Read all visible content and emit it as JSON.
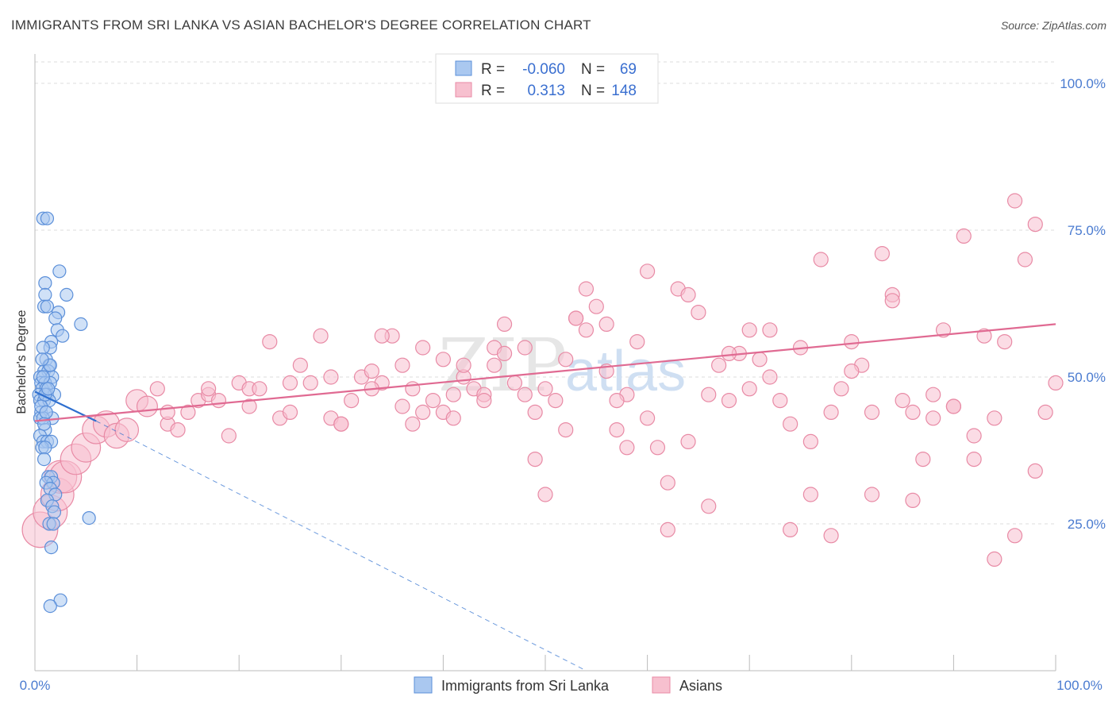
{
  "title": "IMMIGRANTS FROM SRI LANKA VS ASIAN BACHELOR'S DEGREE CORRELATION CHART",
  "source": "Source: ZipAtlas.com",
  "watermark": {
    "zip": "ZIP",
    "atlas": "atlas"
  },
  "colors": {
    "blue_fill": "#aac8f0",
    "blue_stroke": "#5b8fd9",
    "blue_line": "#2e6fcf",
    "pink_fill": "#f7c0cf",
    "pink_stroke": "#e88aa5",
    "pink_line": "#e06a92",
    "tick_text": "#4a7bd0",
    "grid": "#dddddd"
  },
  "legend": {
    "rows": [
      {
        "r_label": "R =",
        "r_value": "-0.060",
        "n_label": "N =",
        "n_value": "69"
      },
      {
        "r_label": "R =",
        "r_value": "0.313",
        "n_label": "N =",
        "n_value": "148"
      }
    ]
  },
  "chart_data": {
    "type": "scatter",
    "xlabel": "",
    "ylabel": "Bachelor's Degree",
    "xlim": [
      0,
      100
    ],
    "ylim": [
      0,
      105
    ],
    "x_tick_labels": [
      "0.0%",
      "100.0%"
    ],
    "y_ticks": [
      {
        "value": 25,
        "label": "25.0%"
      },
      {
        "value": 50,
        "label": "50.0%"
      },
      {
        "value": 75,
        "label": "75.0%"
      },
      {
        "value": 100,
        "label": "100.0%"
      }
    ],
    "grid": "horizontal dashed",
    "legend_position": "top-center and bottom-center",
    "series": [
      {
        "name": "Immigrants from Sri Lanka",
        "color": "#5b8fd9",
        "trend": {
          "x": [
            0,
            6
          ],
          "y": [
            47.5,
            42.5
          ],
          "dashed_extension": {
            "x": [
              6,
              54
            ],
            "y": [
              42.5,
              0
            ]
          }
        },
        "points": [
          [
            0.8,
            77
          ],
          [
            1.2,
            77
          ],
          [
            1.0,
            66
          ],
          [
            1.0,
            64
          ],
          [
            2.4,
            68
          ],
          [
            3.1,
            64
          ],
          [
            0.9,
            62
          ],
          [
            1.2,
            62
          ],
          [
            2.3,
            61
          ],
          [
            2.0,
            60
          ],
          [
            2.2,
            58
          ],
          [
            4.5,
            59
          ],
          [
            2.7,
            57
          ],
          [
            1.6,
            56
          ],
          [
            1.5,
            55
          ],
          [
            0.8,
            55
          ],
          [
            1.1,
            53
          ],
          [
            1.4,
            52
          ],
          [
            0.9,
            51
          ],
          [
            1.3,
            51
          ],
          [
            1.7,
            50
          ],
          [
            0.5,
            50
          ],
          [
            0.6,
            49
          ],
          [
            1.0,
            49
          ],
          [
            1.5,
            49
          ],
          [
            0.7,
            48
          ],
          [
            1.1,
            48
          ],
          [
            0.4,
            47
          ],
          [
            1.2,
            47
          ],
          [
            1.9,
            47
          ],
          [
            0.5,
            46
          ],
          [
            0.9,
            46
          ],
          [
            1.4,
            46
          ],
          [
            0.6,
            44
          ],
          [
            1.1,
            44
          ],
          [
            1.7,
            43
          ],
          [
            0.5,
            43
          ],
          [
            0.8,
            43
          ],
          [
            1.0,
            41
          ],
          [
            0.5,
            40
          ],
          [
            0.8,
            39
          ],
          [
            1.2,
            39
          ],
          [
            1.6,
            39
          ],
          [
            0.7,
            38
          ],
          [
            1.0,
            38
          ],
          [
            0.9,
            36
          ],
          [
            1.3,
            33
          ],
          [
            1.6,
            33
          ],
          [
            1.8,
            32
          ],
          [
            1.1,
            32
          ],
          [
            1.5,
            31
          ],
          [
            2.0,
            30
          ],
          [
            1.2,
            29
          ],
          [
            1.7,
            28
          ],
          [
            1.9,
            27
          ],
          [
            5.3,
            26
          ],
          [
            1.4,
            25
          ],
          [
            1.8,
            25
          ],
          [
            1.6,
            21
          ],
          [
            2.5,
            12
          ],
          [
            1.5,
            11
          ],
          [
            0.6,
            45
          ],
          [
            1.0,
            47
          ],
          [
            1.3,
            48
          ],
          [
            0.8,
            50
          ],
          [
            1.5,
            52
          ],
          [
            0.7,
            53
          ],
          [
            1.1,
            44
          ],
          [
            0.9,
            42
          ]
        ]
      },
      {
        "name": "Asians",
        "color": "#e88aa5",
        "trend": {
          "x": [
            0,
            100
          ],
          "y": [
            42.5,
            59
          ]
        },
        "points": [
          [
            0.5,
            24
          ],
          [
            1.5,
            27
          ],
          [
            2.2,
            30
          ],
          [
            2.5,
            33
          ],
          [
            3.0,
            33
          ],
          [
            4.0,
            36
          ],
          [
            5.0,
            38
          ],
          [
            6.0,
            41
          ],
          [
            7.0,
            42
          ],
          [
            8.0,
            40
          ],
          [
            9.0,
            41
          ],
          [
            10,
            46
          ],
          [
            11,
            45
          ],
          [
            12,
            48
          ],
          [
            13,
            42
          ],
          [
            14,
            41
          ],
          [
            15,
            44
          ],
          [
            16,
            46
          ],
          [
            17,
            47
          ],
          [
            18,
            46
          ],
          [
            19,
            40
          ],
          [
            20,
            49
          ],
          [
            21,
            48
          ],
          [
            22,
            48
          ],
          [
            23,
            56
          ],
          [
            24,
            43
          ],
          [
            25,
            49
          ],
          [
            26,
            52
          ],
          [
            27,
            49
          ],
          [
            28,
            57
          ],
          [
            29,
            43
          ],
          [
            30,
            42
          ],
          [
            31,
            46
          ],
          [
            32,
            50
          ],
          [
            33,
            51
          ],
          [
            34,
            49
          ],
          [
            35,
            57
          ],
          [
            36,
            52
          ],
          [
            37,
            48
          ],
          [
            38,
            55
          ],
          [
            39,
            46
          ],
          [
            40,
            44
          ],
          [
            41,
            43
          ],
          [
            42,
            50
          ],
          [
            43,
            48
          ],
          [
            44,
            47
          ],
          [
            45,
            55
          ],
          [
            46,
            54
          ],
          [
            47,
            49
          ],
          [
            48,
            47
          ],
          [
            49,
            36
          ],
          [
            50,
            30
          ],
          [
            51,
            46
          ],
          [
            52,
            53
          ],
          [
            53,
            60
          ],
          [
            54,
            58
          ],
          [
            55,
            62
          ],
          [
            56,
            51
          ],
          [
            57,
            41
          ],
          [
            58,
            47
          ],
          [
            59,
            56
          ],
          [
            60,
            43
          ],
          [
            61,
            38
          ],
          [
            62,
            32
          ],
          [
            63,
            65
          ],
          [
            64,
            64
          ],
          [
            65,
            61
          ],
          [
            66,
            47
          ],
          [
            67,
            52
          ],
          [
            68,
            46
          ],
          [
            69,
            54
          ],
          [
            70,
            58
          ],
          [
            71,
            53
          ],
          [
            72,
            50
          ],
          [
            73,
            46
          ],
          [
            74,
            42
          ],
          [
            75,
            55
          ],
          [
            76,
            30
          ],
          [
            77,
            70
          ],
          [
            78,
            44
          ],
          [
            79,
            48
          ],
          [
            80,
            56
          ],
          [
            81,
            52
          ],
          [
            82,
            44
          ],
          [
            83,
            71
          ],
          [
            84,
            64
          ],
          [
            85,
            46
          ],
          [
            86,
            44
          ],
          [
            87,
            36
          ],
          [
            88,
            43
          ],
          [
            89,
            58
          ],
          [
            90,
            45
          ],
          [
            91,
            74
          ],
          [
            92,
            40
          ],
          [
            93,
            57
          ],
          [
            94,
            43
          ],
          [
            95,
            56
          ],
          [
            96,
            80
          ],
          [
            97,
            70
          ],
          [
            98,
            76
          ],
          [
            99,
            44
          ],
          [
            100,
            49
          ],
          [
            30,
            42
          ],
          [
            34,
            57
          ],
          [
            38,
            44
          ],
          [
            42,
            52
          ],
          [
            46,
            59
          ],
          [
            50,
            48
          ],
          [
            54,
            65
          ],
          [
            58,
            38
          ],
          [
            62,
            24
          ],
          [
            66,
            28
          ],
          [
            70,
            48
          ],
          [
            74,
            24
          ],
          [
            78,
            23
          ],
          [
            82,
            30
          ],
          [
            86,
            29
          ],
          [
            90,
            45
          ],
          [
            94,
            19
          ],
          [
            98,
            34
          ],
          [
            36,
            45
          ],
          [
            40,
            53
          ],
          [
            44,
            46
          ],
          [
            48,
            55
          ],
          [
            52,
            41
          ],
          [
            56,
            59
          ],
          [
            60,
            68
          ],
          [
            64,
            39
          ],
          [
            68,
            54
          ],
          [
            72,
            58
          ],
          [
            76,
            39
          ],
          [
            80,
            51
          ],
          [
            84,
            63
          ],
          [
            88,
            47
          ],
          [
            92,
            36
          ],
          [
            96,
            23
          ],
          [
            13,
            44
          ],
          [
            17,
            48
          ],
          [
            21,
            45
          ],
          [
            25,
            44
          ],
          [
            29,
            50
          ],
          [
            33,
            48
          ],
          [
            37,
            42
          ],
          [
            41,
            47
          ],
          [
            45,
            52
          ],
          [
            49,
            44
          ],
          [
            53,
            60
          ],
          [
            57,
            46
          ]
        ]
      }
    ]
  }
}
